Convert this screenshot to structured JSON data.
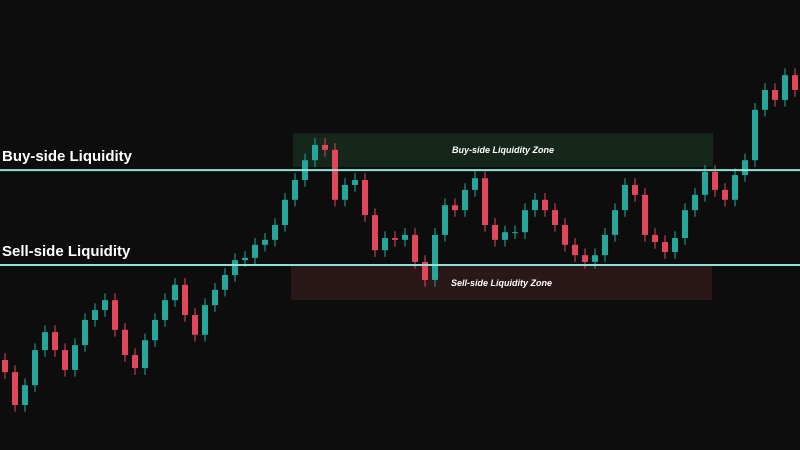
{
  "chart_data": {
    "type": "candlestick",
    "up_color": "#26a69a",
    "down_color": "#e0475b",
    "level_color": "#8fe3d6",
    "ylim": [
      0,
      100
    ],
    "open": [
      20.0,
      17.3,
      10.0,
      14.4,
      22.2,
      26.2,
      22.2,
      17.8,
      23.3,
      28.9,
      31.1,
      33.3,
      26.7,
      21.1,
      18.2,
      24.4,
      28.9,
      33.3,
      36.7,
      30.0,
      25.6,
      32.2,
      35.6,
      38.9,
      42.2,
      42.7,
      45.6,
      46.7,
      50.0,
      55.6,
      60.0,
      64.4,
      67.8,
      66.7,
      55.6,
      58.9,
      60.0,
      52.2,
      44.4,
      47.1,
      46.7,
      47.8,
      41.8,
      37.8,
      47.8,
      54.4,
      53.3,
      57.8,
      60.4,
      50.0,
      46.7,
      48.4,
      48.4,
      53.3,
      55.6,
      53.3,
      50.0,
      45.6,
      43.3,
      41.8,
      43.3,
      47.8,
      53.3,
      58.9,
      56.7,
      47.8,
      46.2,
      44.0,
      47.1,
      53.3,
      56.7,
      61.8,
      57.8,
      55.6,
      61.1,
      64.4,
      75.6,
      80.0,
      77.8,
      83.3
    ],
    "high": [
      21.5,
      18.8,
      15.9,
      23.7,
      27.7,
      27.7,
      23.7,
      24.8,
      30.4,
      32.6,
      34.8,
      34.8,
      28.2,
      22.6,
      25.9,
      30.4,
      34.8,
      38.2,
      38.2,
      31.5,
      33.7,
      37.1,
      40.4,
      43.7,
      44.2,
      47.1,
      48.2,
      51.5,
      57.1,
      61.5,
      65.9,
      69.3,
      69.3,
      68.2,
      60.4,
      61.5,
      61.5,
      53.7,
      48.6,
      48.6,
      49.3,
      49.3,
      43.3,
      49.3,
      55.9,
      55.9,
      59.3,
      61.9,
      61.9,
      51.5,
      49.9,
      49.9,
      54.8,
      57.1,
      57.1,
      54.8,
      51.5,
      47.1,
      44.8,
      44.8,
      49.3,
      54.8,
      60.4,
      60.4,
      58.2,
      49.3,
      47.7,
      48.6,
      54.8,
      58.2,
      63.3,
      63.3,
      59.3,
      62.6,
      65.9,
      77.1,
      81.5,
      81.5,
      84.8,
      84.8
    ],
    "low": [
      15.8,
      8.5,
      8.5,
      12.9,
      20.7,
      20.7,
      16.3,
      16.3,
      21.8,
      27.4,
      29.6,
      25.2,
      19.6,
      16.7,
      16.7,
      22.9,
      27.4,
      31.8,
      28.5,
      24.1,
      24.1,
      30.7,
      34.1,
      37.4,
      40.7,
      41.2,
      44.1,
      45.2,
      48.5,
      54.1,
      58.5,
      62.9,
      65.2,
      54.1,
      54.1,
      57.4,
      50.7,
      42.9,
      42.9,
      45.2,
      45.2,
      40.3,
      36.3,
      36.3,
      46.3,
      51.8,
      51.8,
      56.3,
      48.5,
      45.2,
      45.2,
      46.9,
      46.9,
      51.8,
      51.8,
      48.5,
      44.1,
      41.8,
      40.3,
      40.3,
      41.8,
      46.3,
      51.8,
      55.2,
      46.3,
      44.7,
      42.5,
      42.5,
      45.6,
      51.8,
      55.2,
      56.3,
      54.1,
      54.1,
      59.6,
      62.9,
      74.1,
      76.3,
      76.3,
      78.5
    ],
    "close": [
      17.3,
      10.0,
      14.4,
      22.2,
      26.2,
      22.2,
      17.8,
      23.3,
      28.9,
      31.1,
      33.3,
      26.7,
      21.1,
      18.2,
      24.4,
      28.9,
      33.3,
      36.7,
      30.0,
      25.6,
      32.2,
      35.6,
      38.9,
      42.2,
      42.7,
      45.6,
      46.7,
      50.0,
      55.6,
      60.0,
      64.4,
      67.8,
      66.7,
      55.6,
      58.9,
      60.0,
      52.2,
      44.4,
      47.1,
      46.7,
      47.8,
      41.8,
      37.8,
      47.8,
      54.4,
      53.3,
      57.8,
      60.4,
      50.0,
      46.7,
      48.4,
      48.4,
      53.3,
      55.6,
      53.3,
      50.0,
      45.6,
      43.3,
      41.8,
      43.3,
      47.8,
      53.3,
      58.9,
      56.7,
      47.8,
      46.2,
      44.0,
      47.1,
      53.3,
      56.7,
      61.8,
      57.8,
      55.6,
      61.1,
      64.4,
      75.6,
      80.0,
      77.8,
      83.3,
      80.0
    ],
    "zones": [
      {
        "label": "Buy-side Liquidity Zone",
        "range": [
          62.9,
          70.4
        ],
        "color": "#15261b"
      },
      {
        "label": "Sell-side Liquidity Zone",
        "range": [
          33.3,
          40.9
        ],
        "color": "#2a1717"
      }
    ],
    "levels": [
      {
        "label": "Buy-side Liquidity",
        "value": 62.2
      },
      {
        "label": "Sell-side Liquidity",
        "value": 41.1
      }
    ]
  }
}
